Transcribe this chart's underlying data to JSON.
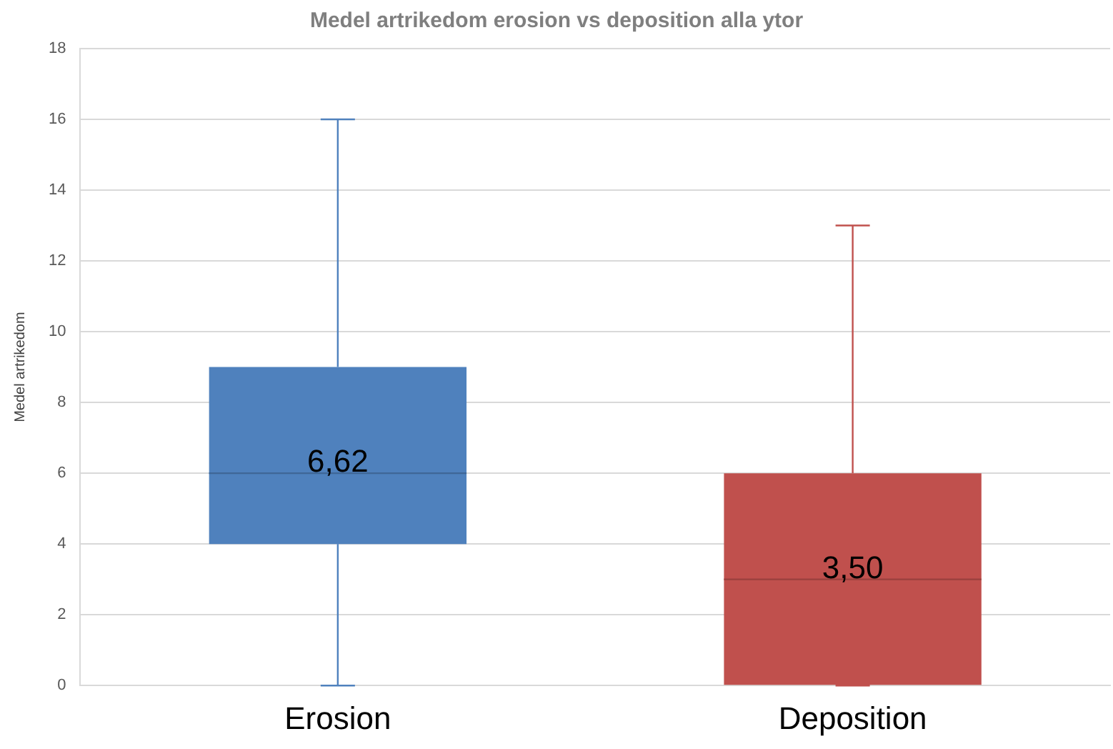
{
  "chart_data": {
    "type": "box",
    "title": "Medel artrikedom erosion vs deposition alla ytor",
    "ylabel": "Medel artrikedom",
    "categories": [
      "Erosion",
      "Deposition"
    ],
    "boxes": [
      {
        "low": 0,
        "q1": 4,
        "median": 6,
        "q3": 9,
        "high": 16
      },
      {
        "low": 0,
        "q1": 0,
        "median": 3,
        "q3": 6,
        "high": 13
      }
    ],
    "colors": [
      "#4f81bd",
      "#c0504d"
    ],
    "ylim": [
      0,
      18
    ],
    "yticks": [
      0,
      2,
      4,
      6,
      8,
      10,
      12,
      14,
      16,
      18
    ],
    "grid": "y",
    "legend": false,
    "annotations": [
      "6,62",
      "3,50"
    ]
  }
}
